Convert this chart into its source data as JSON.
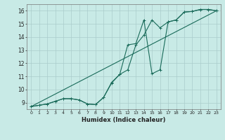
{
  "xlabel": "Humidex (Indice chaleur)",
  "bg_color": "#c8eae6",
  "grid_color": "#aacccc",
  "line_color": "#1a6b5a",
  "xlim": [
    -0.5,
    23.5
  ],
  "ylim": [
    8.5,
    16.5
  ],
  "xticks": [
    0,
    1,
    2,
    3,
    4,
    5,
    6,
    7,
    8,
    9,
    10,
    11,
    12,
    13,
    14,
    15,
    16,
    17,
    18,
    19,
    20,
    21,
    22,
    23
  ],
  "yticks": [
    9,
    10,
    11,
    12,
    13,
    14,
    15,
    16
  ],
  "line1_x": [
    0,
    1,
    2,
    3,
    4,
    5,
    6,
    7,
    8,
    9,
    10,
    11,
    12,
    13,
    14,
    15,
    16,
    17,
    18,
    19,
    20,
    21,
    22,
    23
  ],
  "line1_y": [
    8.7,
    8.8,
    8.9,
    9.1,
    9.3,
    9.3,
    9.2,
    8.9,
    8.85,
    9.4,
    10.5,
    11.15,
    13.4,
    13.5,
    15.3,
    11.2,
    11.5,
    15.15,
    15.3,
    15.9,
    15.95,
    16.1,
    16.1,
    16.0
  ],
  "line2_x": [
    0,
    1,
    2,
    3,
    4,
    5,
    6,
    7,
    8,
    9,
    10,
    11,
    12,
    13,
    14,
    15,
    16,
    17,
    18,
    19,
    20,
    21,
    22,
    23
  ],
  "line2_y": [
    8.7,
    8.8,
    8.9,
    9.1,
    9.3,
    9.3,
    9.2,
    8.9,
    8.85,
    9.4,
    10.55,
    11.15,
    11.5,
    13.4,
    14.15,
    15.3,
    14.7,
    15.15,
    15.3,
    15.9,
    15.95,
    16.1,
    16.1,
    16.0
  ],
  "line3_x": [
    0,
    23
  ],
  "line3_y": [
    8.7,
    16.0
  ]
}
